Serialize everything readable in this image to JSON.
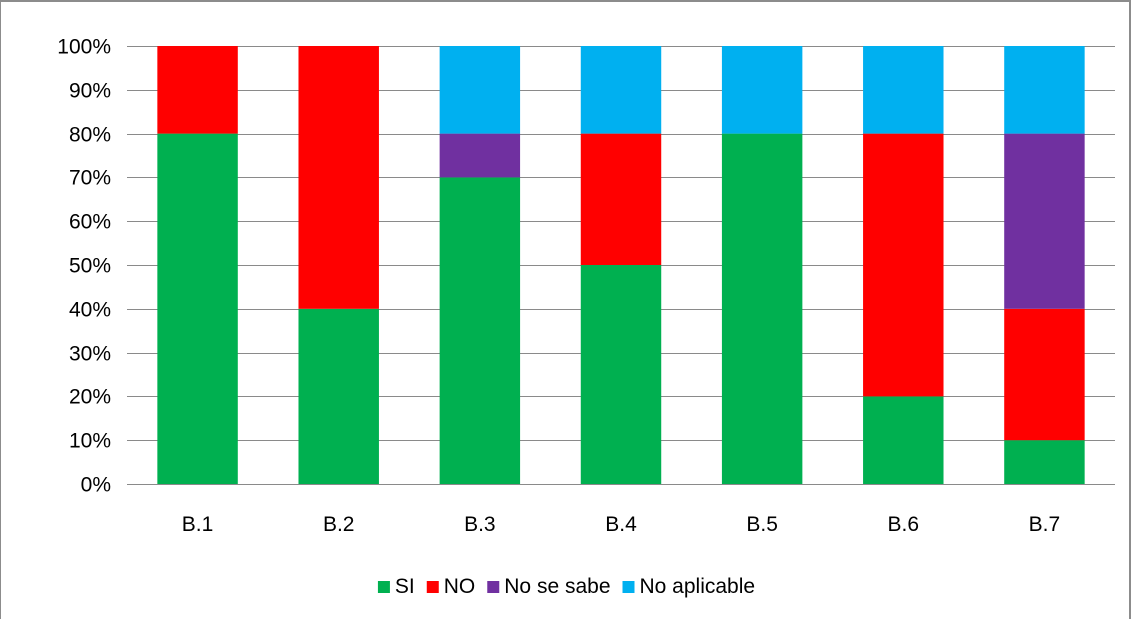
{
  "chart_data": {
    "type": "bar",
    "stacked": true,
    "percent": true,
    "title": "",
    "xlabel": "",
    "ylabel": "",
    "ylim": [
      0,
      100
    ],
    "y_ticks": [
      "0%",
      "10%",
      "20%",
      "30%",
      "40%",
      "50%",
      "60%",
      "70%",
      "80%",
      "90%",
      "100%"
    ],
    "grid": true,
    "legend_position": "bottom",
    "categories": [
      "B.1",
      "B.2",
      "B.3",
      "B.4",
      "B.5",
      "B.6",
      "B.7"
    ],
    "series": [
      {
        "name": "SI",
        "color": "#00b050",
        "values": [
          80,
          40,
          70,
          50,
          80,
          20,
          10
        ]
      },
      {
        "name": "NO",
        "color": "#ff0000",
        "values": [
          20,
          60,
          0,
          30,
          0,
          60,
          30
        ]
      },
      {
        "name": "No se sabe",
        "color": "#7030a0",
        "values": [
          0,
          0,
          10,
          0,
          0,
          0,
          40
        ]
      },
      {
        "name": "No aplicable",
        "color": "#00b0f0",
        "values": [
          0,
          0,
          20,
          20,
          20,
          20,
          20
        ]
      }
    ]
  }
}
